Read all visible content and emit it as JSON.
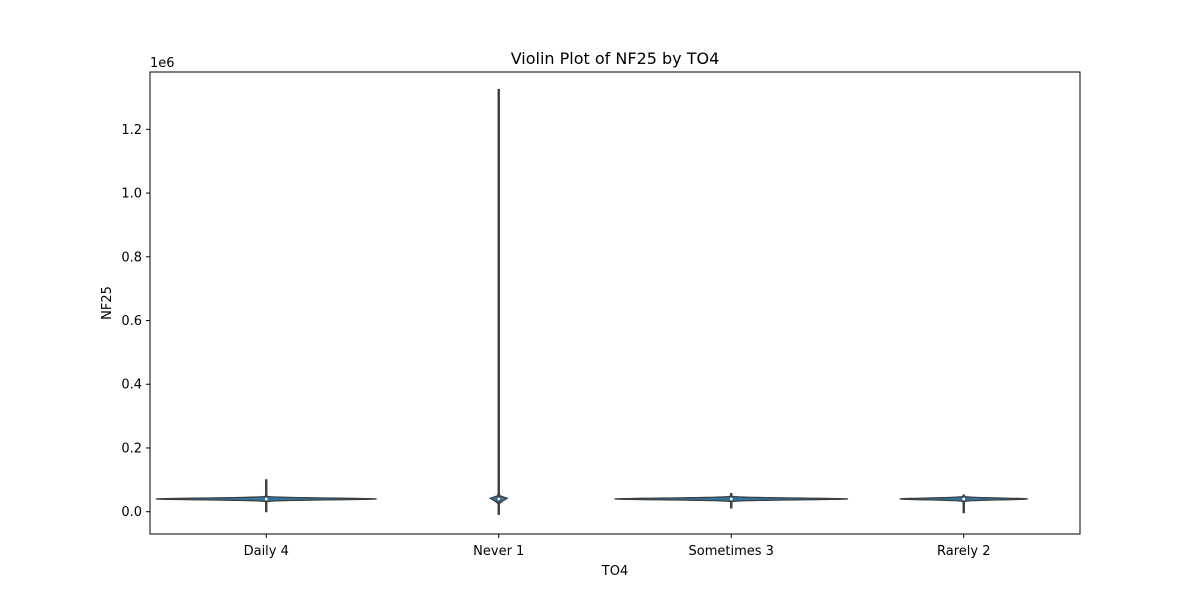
{
  "chart_data": {
    "type": "violin",
    "title": "Violin Plot of NF25 by TO4",
    "xlabel": "TO4",
    "ylabel": "NF25",
    "y_offset_label": "1e6",
    "y_scale_factor": 1000000,
    "ylim": [
      -70000,
      1380000
    ],
    "yticks": [
      0.0,
      0.2,
      0.4,
      0.6,
      0.8,
      1.0,
      1.2
    ],
    "ytick_labels": [
      "0.0",
      "0.2",
      "0.4",
      "0.6",
      "0.8",
      "1.0",
      "1.2"
    ],
    "categories": [
      "Daily 4",
      "Never 1",
      "Sometimes 3",
      "Rarely 2"
    ],
    "colors": {
      "Daily 4": "#3274a1",
      "Never 1": "#3274a1",
      "Sometimes 3": "#3274a1",
      "Rarely 2": "#3274a1",
      "line": "#3d3d3d",
      "axis": "#000000"
    },
    "violins": [
      {
        "category": "Daily 4",
        "min": 0,
        "q1": 36000,
        "median": 40000,
        "q3": 44000,
        "max": 100000,
        "mode": 40000,
        "half_width": 0.95
      },
      {
        "category": "Never 1",
        "min": -8000,
        "q1": 33000,
        "median": 40000,
        "q3": 47000,
        "max": 1325000,
        "mode": 40000,
        "half_width": 0.08
      },
      {
        "category": "Sometimes 3",
        "min": 12000,
        "q1": 36000,
        "median": 40000,
        "q3": 44000,
        "max": 57000,
        "mode": 40000,
        "half_width": 1.0
      },
      {
        "category": "Rarely 2",
        "min": -3000,
        "q1": 36000,
        "median": 40000,
        "q3": 44000,
        "max": 52000,
        "mode": 40000,
        "half_width": 0.55
      }
    ],
    "grid": false,
    "legend": "none"
  }
}
